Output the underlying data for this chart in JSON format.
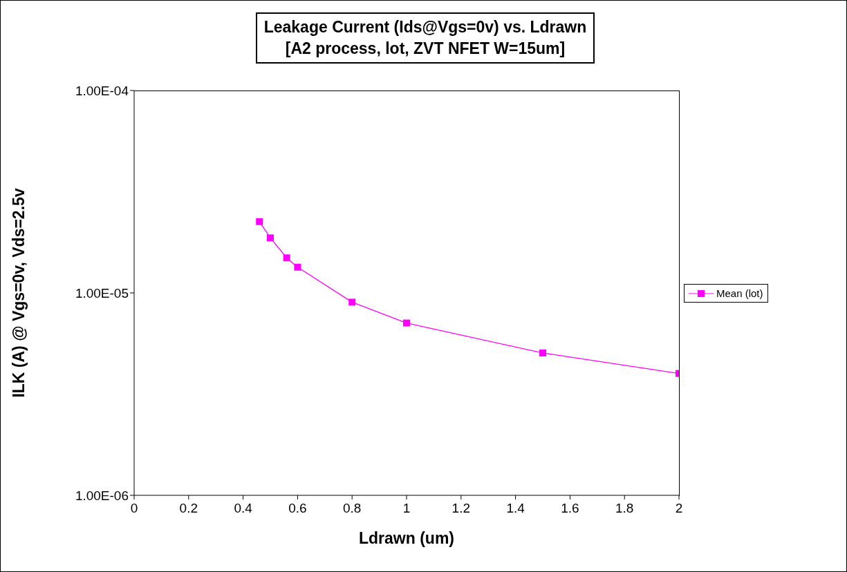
{
  "chart_data": {
    "type": "line",
    "title": "Leakage Current (Ids@Vgs=0v) vs. Ldrawn",
    "subtitle": "[A2 process, lot, ZVT NFET W=15um]",
    "xlabel": "Ldrawn (um)",
    "ylabel": "ILK (A) @ Vgs=0v, Vds=2.5v",
    "x": [
      0.46,
      0.5,
      0.56,
      0.6,
      0.8,
      1,
      1.5,
      2
    ],
    "series": [
      {
        "name": "Mean (lot)",
        "color": "#ff00ff",
        "values": [
          2.25e-05,
          1.87e-05,
          1.49e-05,
          1.34e-05,
          9e-06,
          7.1e-06,
          5.05e-06,
          4e-06
        ]
      }
    ],
    "xlim": [
      0,
      2
    ],
    "xticks": [
      0,
      0.2,
      0.4,
      0.6,
      0.8,
      1,
      1.2,
      1.4,
      1.6,
      1.8,
      2
    ],
    "ylim": [
      1e-06,
      0.0001
    ],
    "yticks": [
      {
        "value": 1e-06,
        "label": "1.00E-06"
      },
      {
        "value": 1e-05,
        "label": "1.00E-05"
      },
      {
        "value": 0.0001,
        "label": "1.00E-04"
      }
    ],
    "log": "y",
    "legend": "right",
    "marker": "square",
    "line_style": "solid",
    "grid": false
  }
}
